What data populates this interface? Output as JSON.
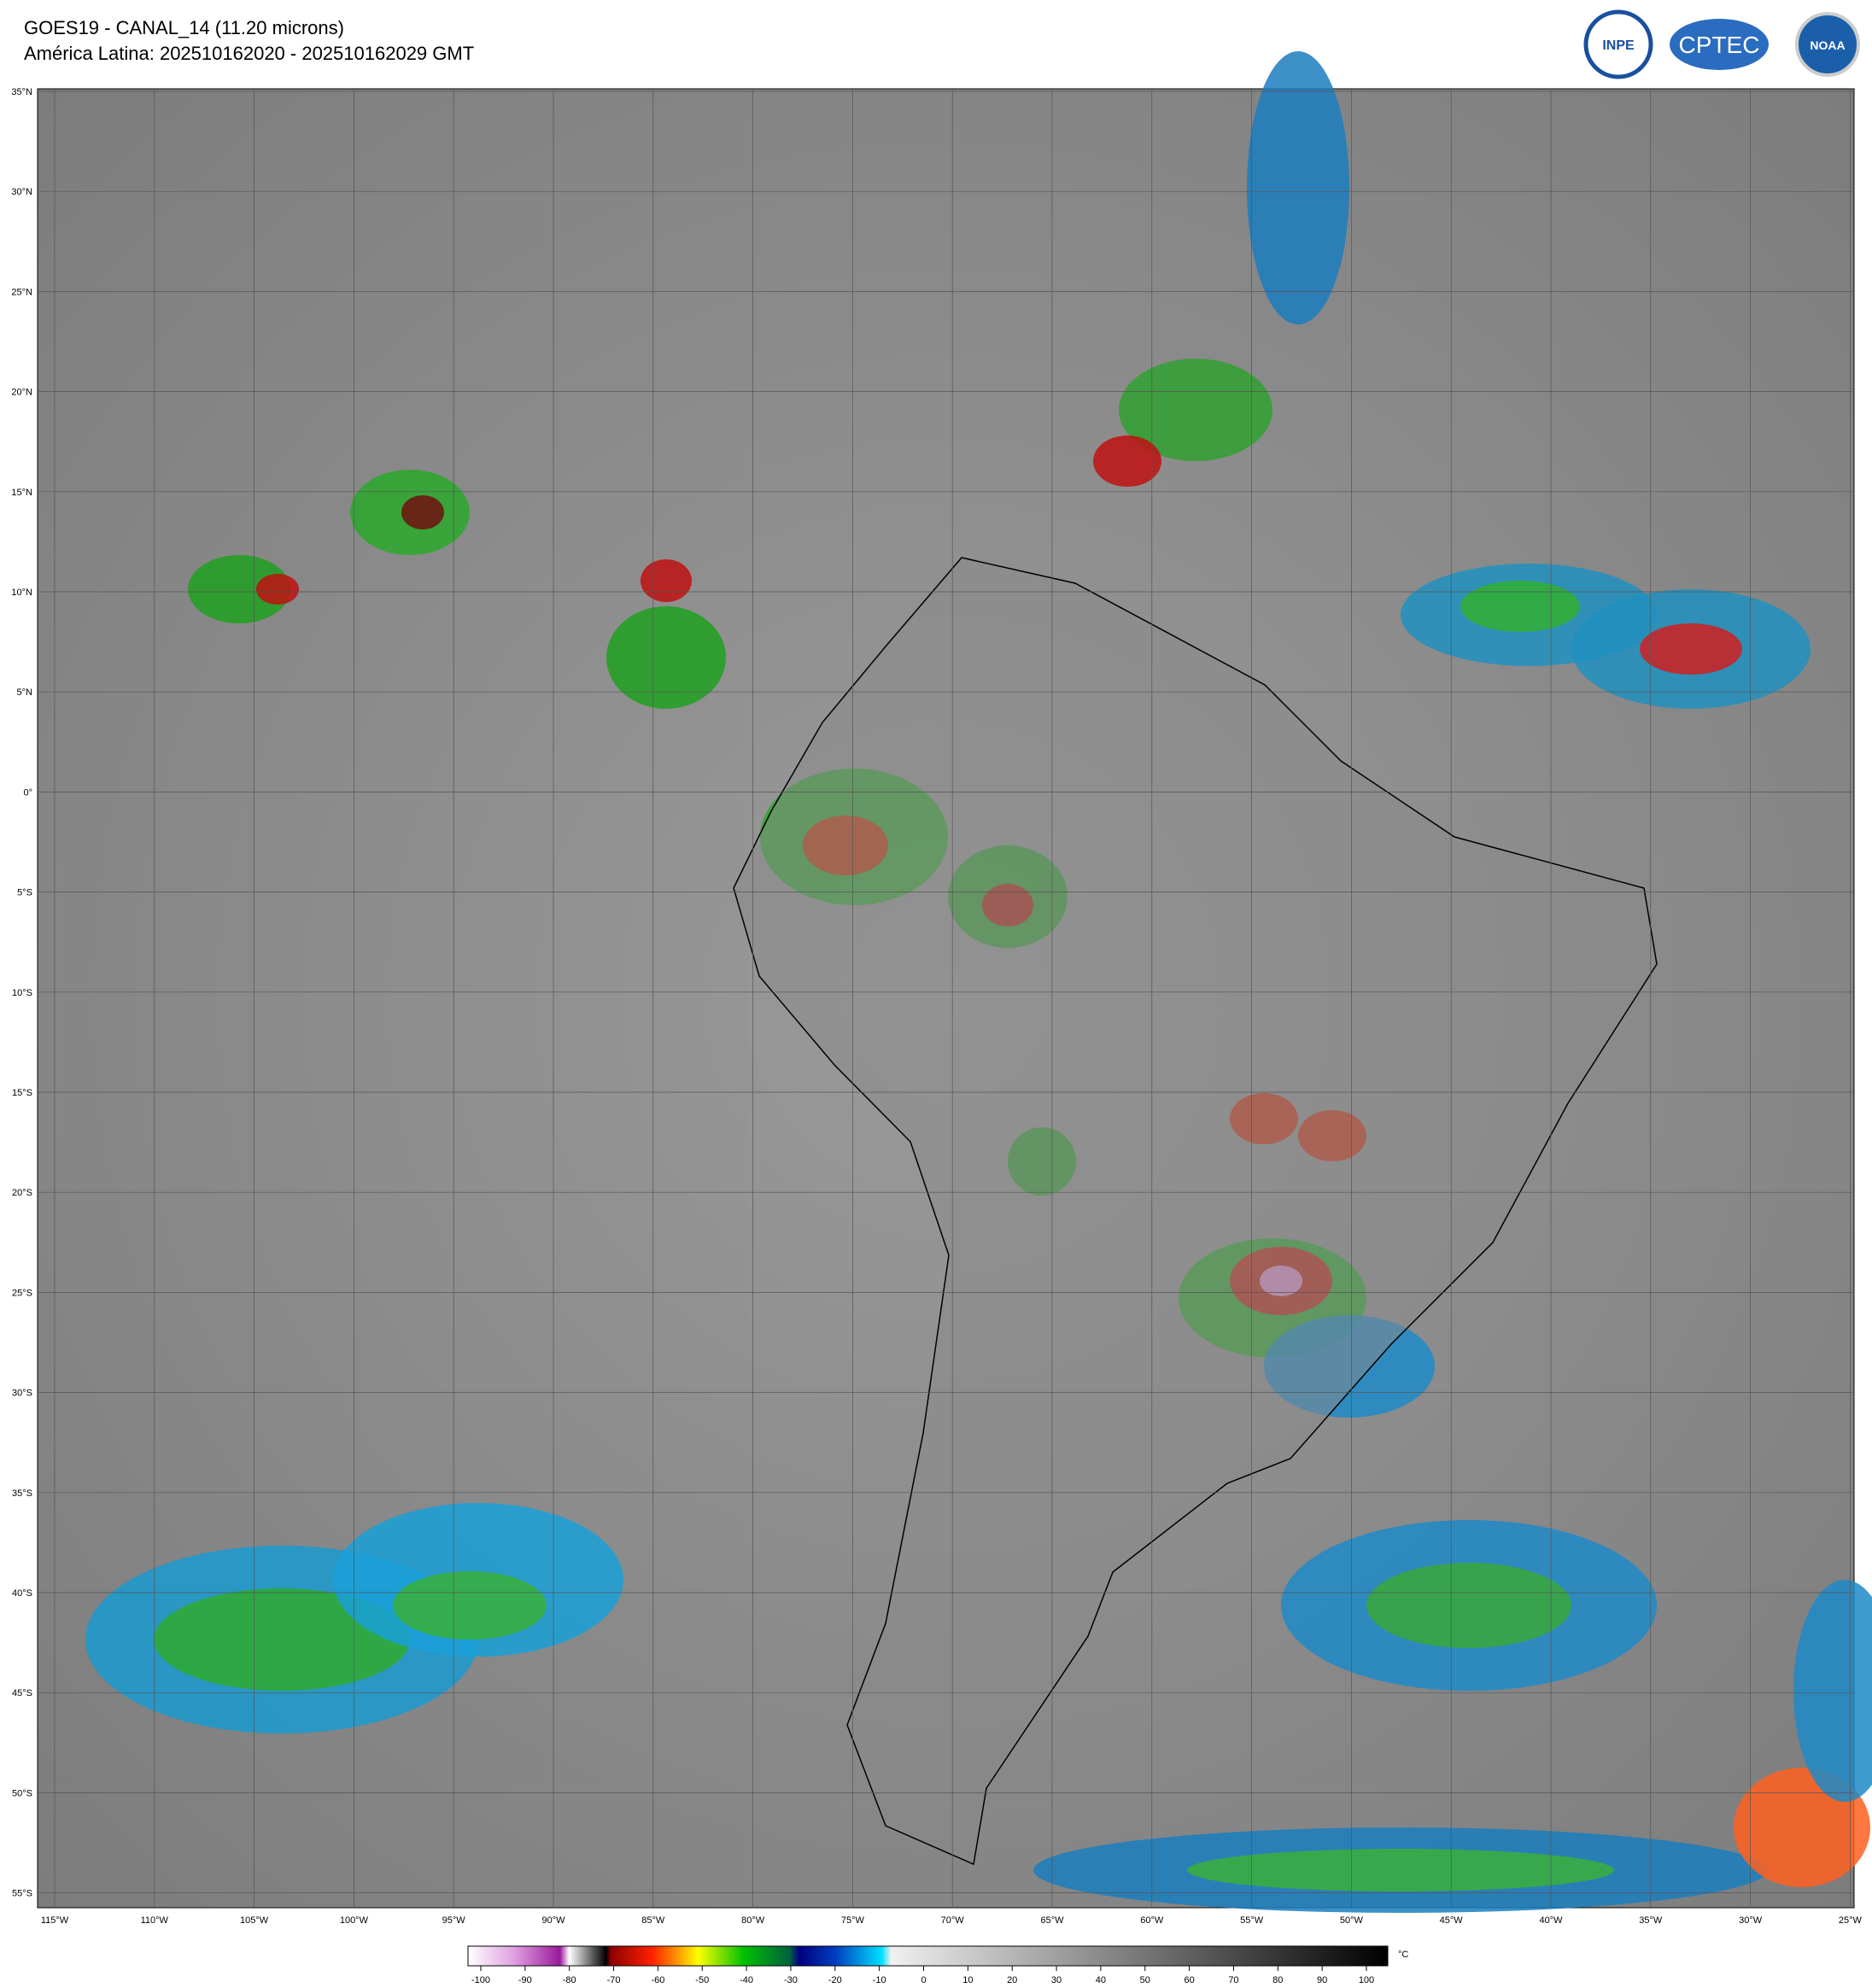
{
  "header": {
    "title": "GOES19 - CANAL_14 (11.20 microns)",
    "subtitle": "América Latina: 202510162020 - 202510162029 GMT"
  },
  "logos": [
    "INPE",
    "CPTEC",
    "NOAA"
  ],
  "map": {
    "lat_labels": [
      "35°N",
      "30°N",
      "25°N",
      "20°N",
      "15°N",
      "10°N",
      "5°N",
      "0°",
      "5°S",
      "10°S",
      "15°S",
      "20°S",
      "25°S",
      "30°S",
      "35°S",
      "40°S",
      "45°S",
      "50°S",
      "55°S"
    ],
    "lon_labels": [
      "115°W",
      "110°W",
      "105°W",
      "100°W",
      "95°W",
      "90°W",
      "85°W",
      "80°W",
      "75°W",
      "70°W",
      "65°W",
      "60°W",
      "55°W",
      "50°W",
      "45°W",
      "40°W",
      "35°W",
      "30°W",
      "25°W"
    ]
  },
  "colorbar": {
    "ticks": [
      -100,
      -90,
      -80,
      -70,
      -60,
      -50,
      -40,
      -30,
      -20,
      -10,
      0,
      10,
      20,
      30,
      40,
      50,
      60,
      70,
      80,
      90,
      100
    ],
    "unit": "°C"
  }
}
